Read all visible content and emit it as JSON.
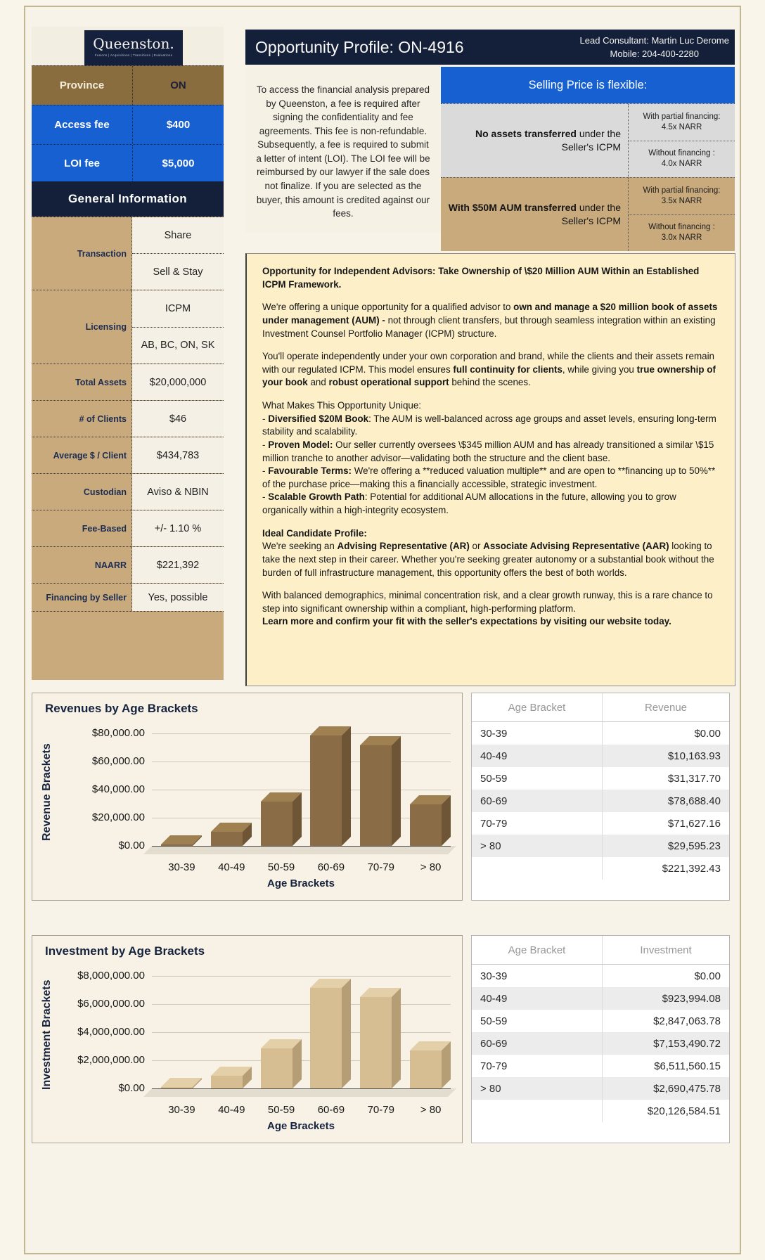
{
  "left_panel": {
    "logo": {
      "brand": "Queenston.",
      "tagline": "Fusions | Acquisitions | Transitions | Evaluations"
    },
    "top_rows": [
      {
        "label": "Province",
        "value": "ON"
      },
      {
        "label": "Access fee",
        "value": "$400"
      },
      {
        "label": "LOI fee",
        "value": "$5,000"
      }
    ],
    "section_title": "General Information",
    "info_rows": [
      {
        "label": "Transaction",
        "values": [
          "Share",
          "Sell & Stay"
        ]
      },
      {
        "label": "Licensing",
        "values": [
          "ICPM",
          "AB, BC, ON, SK"
        ]
      },
      {
        "label": "Total Assets",
        "values": [
          "$20,000,000"
        ]
      },
      {
        "label": "# of Clients",
        "values": [
          "$46"
        ]
      },
      {
        "label": "Average $ / Client",
        "values": [
          "$434,783"
        ]
      },
      {
        "label": "Custodian",
        "values": [
          "Aviso & NBIN"
        ]
      },
      {
        "label": "Fee-Based",
        "values": [
          "+/- 1.10 %"
        ]
      },
      {
        "label": "NAARR",
        "values": [
          "$221,392"
        ]
      },
      {
        "label": "Financing by Seller",
        "values": [
          "Yes, possible"
        ]
      }
    ]
  },
  "header": {
    "title": "Opportunity Profile: ON-4916",
    "lead_consultant": "Lead Consultant: Martin Luc Derome",
    "mobile": "Mobile: 204-400-2280"
  },
  "intro": {
    "text": "To access the financial analysis prepared by Queenston, a fee is required after signing the confidentiality and fee agreements. This fee is non-refundable. Subsequently, a fee is required to submit a letter of intent (LOI). The LOI fee will be reimbursed by our lawyer if the sale does not finalize. If you are selected as the buyer, this amount is credited against our fees."
  },
  "selling": {
    "header": "Selling Price is flexible:",
    "rows": [
      {
        "style": "gray",
        "label_bold": "No assets transferred",
        "label_rest": " under the Seller's ICPM",
        "options": [
          {
            "label": "With partial financing:",
            "value": "4.5x NARR"
          },
          {
            "label": "Without financing :",
            "value": "4.0x NARR"
          }
        ]
      },
      {
        "style": "tan",
        "label_bold": "With $50M AUM transferred",
        "label_rest": " under the Seller's ICPM",
        "options": [
          {
            "label": "With partial financing:",
            "value": "3.5x NARR"
          },
          {
            "label": "Without financing :",
            "value": "3.0x NARR"
          }
        ]
      }
    ]
  },
  "body": {
    "paragraphs": [
      {
        "gap": false,
        "segments": [
          {
            "t": "Opportunity for Independent Advisors: Take Ownership of \\$20 Million AUM Within an Established ICPM Framework.",
            "b": true
          }
        ]
      },
      {
        "gap": true,
        "segments": [
          {
            "t": "We're offering a unique opportunity for a qualified advisor to ",
            "b": false
          },
          {
            "t": "own and manage a $20 million book of assets under management (AUM) - ",
            "b": true
          },
          {
            "t": "not through client transfers, but through seamless integration within an existing Investment Counsel Portfolio Manager (ICPM) structure.",
            "b": false
          }
        ]
      },
      {
        "gap": true,
        "segments": [
          {
            "t": "You'll operate independently under your own corporation and brand, while the clients and their assets remain with our regulated ICPM. This model ensures ",
            "b": false
          },
          {
            "t": "full continuity for clients",
            "b": true
          },
          {
            "t": ", while giving you ",
            "b": false
          },
          {
            "t": "true ownership of your book",
            "b": true
          },
          {
            "t": " and ",
            "b": false
          },
          {
            "t": "robust operational support",
            "b": true
          },
          {
            "t": " behind the scenes.",
            "b": false
          }
        ]
      },
      {
        "gap": true,
        "segments": [
          {
            "t": "What Makes This Opportunity Unique:",
            "b": false
          }
        ]
      },
      {
        "gap": false,
        "segments": [
          {
            "t": "- ",
            "b": false
          },
          {
            "t": "Diversified $20M Book",
            "b": true
          },
          {
            "t": ": The AUM is well-balanced across age groups and asset levels, ensuring long-term stability and scalability.",
            "b": false
          }
        ]
      },
      {
        "gap": false,
        "segments": [
          {
            "t": "- ",
            "b": false
          },
          {
            "t": "Proven Model:",
            "b": true
          },
          {
            "t": " Our seller currently oversees \\$345 million AUM and has already transitioned a similar \\$15 million tranche to another advisor—validating both the structure and the client base.",
            "b": false
          }
        ]
      },
      {
        "gap": false,
        "segments": [
          {
            "t": "- ",
            "b": false
          },
          {
            "t": "Favourable Terms:",
            "b": true
          },
          {
            "t": " We're offering a **reduced valuation multiple** and are open to **financing up to 50%** of the purchase price—making this a financially accessible, strategic investment.",
            "b": false
          }
        ]
      },
      {
        "gap": false,
        "segments": [
          {
            "t": "- ",
            "b": false
          },
          {
            "t": "Scalable Growth Path",
            "b": true
          },
          {
            "t": ": Potential for additional AUM allocations in the future, allowing you to grow organically within a high-integrity ecosystem.",
            "b": false
          }
        ]
      },
      {
        "gap": true,
        "segments": [
          {
            "t": "Ideal Candidate Profile:",
            "b": true
          }
        ]
      },
      {
        "gap": false,
        "segments": [
          {
            "t": "We're seeking an ",
            "b": false
          },
          {
            "t": "Advising Representative (AR)",
            "b": true
          },
          {
            "t": " or ",
            "b": false
          },
          {
            "t": "Associate Advising Representative (AAR)",
            "b": true
          },
          {
            "t": " looking to take the next step in their career. Whether you're seeking greater autonomy or a substantial book without the burden of full infrastructure management, this opportunity offers the best of both worlds.",
            "b": false
          }
        ]
      },
      {
        "gap": true,
        "segments": [
          {
            "t": "With balanced demographics, minimal concentration risk, and a clear growth runway, this is a rare chance to step into significant ownership within a compliant, high-performing platform.",
            "b": false
          }
        ]
      },
      {
        "gap": false,
        "segments": [
          {
            "t": "Learn more and confirm your fit with the seller's expectations by visiting our website today.",
            "b": true
          }
        ]
      }
    ]
  },
  "chart_data": [
    {
      "type": "bar",
      "title": "Revenues by Age Brackets",
      "categories": [
        "30-39",
        "40-49",
        "50-59",
        "60-69",
        "70-79",
        "> 80"
      ],
      "values": [
        0,
        10163.93,
        31317.7,
        78688.4,
        71627.16,
        29595.23
      ],
      "xlabel": "Age Brackets",
      "ylabel": "Revenue Brackets",
      "ylim": [
        0,
        80000
      ],
      "ytick_step": 20000,
      "ytick_labels": [
        "$0.00",
        "$20,000.00",
        "$40,000.00",
        "$60,000.00",
        "$80,000.00"
      ],
      "grid": true,
      "colors": {
        "front": "#8a6d46",
        "top": "#9e8051",
        "side": "#6e5536"
      },
      "table": {
        "headers": [
          "Age Bracket",
          "Revenue"
        ],
        "rows": [
          [
            "30-39",
            "$0.00"
          ],
          [
            "40-49",
            "$10,163.93"
          ],
          [
            "50-59",
            "$31,317.70"
          ],
          [
            "60-69",
            "$78,688.40"
          ],
          [
            "70-79",
            "$71,627.16"
          ],
          [
            "> 80",
            "$29,595.23"
          ],
          [
            "",
            "$221,392.43"
          ]
        ]
      }
    },
    {
      "type": "bar",
      "title": "Investment by Age Brackets",
      "categories": [
        "30-39",
        "40-49",
        "50-59",
        "60-69",
        "70-79",
        "> 80"
      ],
      "values": [
        0,
        923994.08,
        2847063.78,
        7153490.72,
        6511560.15,
        2690475.78
      ],
      "xlabel": "Age Brackets",
      "ylabel": "Investment Brackets",
      "ylim": [
        0,
        8000000
      ],
      "ytick_step": 2000000,
      "ytick_labels": [
        "$0.00",
        "$2,000,000.00",
        "$4,000,000.00",
        "$6,000,000.00",
        "$8,000,000.00"
      ],
      "grid": true,
      "colors": {
        "front": "#d7bd92",
        "top": "#e3d0a9",
        "side": "#b59d75"
      },
      "table": {
        "headers": [
          "Age Bracket",
          "Investment"
        ],
        "rows": [
          [
            "30-39",
            "$0.00"
          ],
          [
            "40-49",
            "$923,994.08"
          ],
          [
            "50-59",
            "$2,847,063.78"
          ],
          [
            "60-69",
            "$7,153,490.72"
          ],
          [
            "70-79",
            "$6,511,560.15"
          ],
          [
            "> 80",
            "$2,690,475.78"
          ],
          [
            "",
            "$20,126,584.51"
          ]
        ]
      }
    }
  ]
}
